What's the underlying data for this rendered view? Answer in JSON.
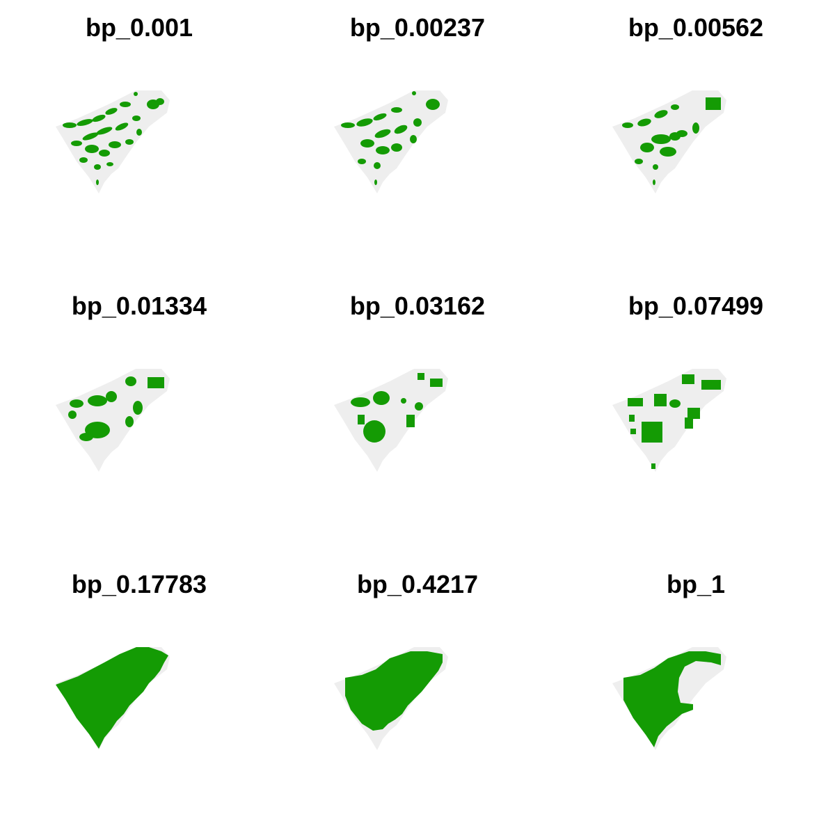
{
  "colors": {
    "background": "#ffffff",
    "region": "#eeeeee",
    "selected": "#149b04",
    "title": "#000000"
  },
  "panels": [
    {
      "title": "bp_0.001"
    },
    {
      "title": "bp_0.00237"
    },
    {
      "title": "bp_0.00562"
    },
    {
      "title": "bp_0.01334"
    },
    {
      "title": "bp_0.03162"
    },
    {
      "title": "bp_0.07499"
    },
    {
      "title": "bp_0.17783"
    },
    {
      "title": "bp_0.4217"
    },
    {
      "title": "bp_1"
    }
  ]
}
